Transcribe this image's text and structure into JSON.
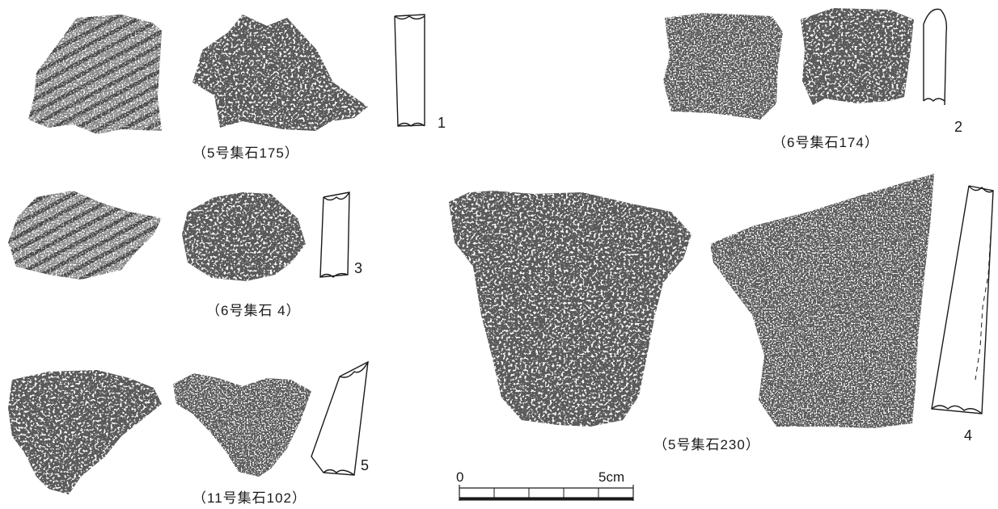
{
  "figures": [
    {
      "number": "1",
      "caption": "（5号集石175）"
    },
    {
      "number": "2",
      "caption": "（6号集石174）"
    },
    {
      "number": "3",
      "caption": "（6号集石 4）"
    },
    {
      "number": "4",
      "caption": "（5号集石230）"
    },
    {
      "number": "5",
      "caption": "（11号集石102）"
    }
  ],
  "scale_bar": {
    "start_label": "0",
    "end_label": "5cm"
  },
  "colors": {
    "ink": "#1a1a1a",
    "paper": "#ffffff"
  }
}
